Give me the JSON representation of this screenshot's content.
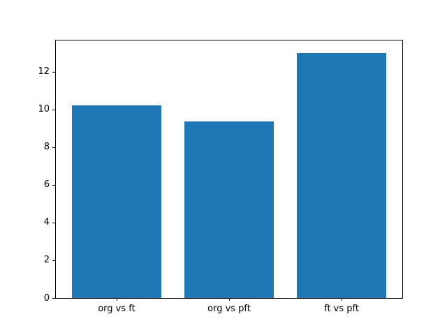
{
  "chart_data": {
    "type": "bar",
    "title": "",
    "xlabel": "",
    "ylabel": "",
    "categories": [
      "org vs ft",
      "org vs pft",
      "ft vs pft"
    ],
    "values": [
      10.2,
      9.35,
      13.0
    ],
    "yticks": [
      "0",
      "2",
      "4",
      "6",
      "8",
      "10",
      "12"
    ],
    "ytick_values": [
      0,
      2,
      4,
      6,
      8,
      10,
      12
    ],
    "ylim": [
      0,
      13.65
    ],
    "xlim": [
      -0.54,
      2.54
    ],
    "bar_width": 0.8,
    "bar_color": "#1f77b4",
    "spine_color": "#000000",
    "tick_label_color": "#000000",
    "background_color": "#ffffff",
    "grid": false,
    "legend": "none"
  }
}
